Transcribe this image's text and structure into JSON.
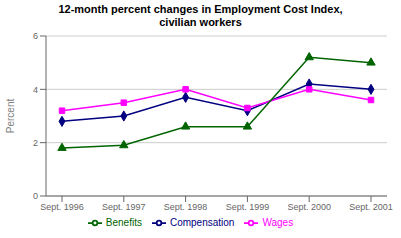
{
  "chart_data": {
    "type": "line",
    "title": "12-month percent changes in Employment Cost Index,\ncivilian workers",
    "ylabel": "Percent",
    "categories": [
      "Sept. 1996",
      "Sept. 1997",
      "Sept. 1998",
      "Sept. 1999",
      "Sept. 2000",
      "Sept. 2001"
    ],
    "series": [
      {
        "name": "Compensation",
        "color": "#000080",
        "marker": "diamond",
        "line_style": "solid",
        "values": [
          2.8,
          3.0,
          3.7,
          3.2,
          4.2,
          4.0
        ]
      },
      {
        "name": "Wages",
        "color": "#FF00FF",
        "marker": "square",
        "line_style": "solid",
        "values": [
          3.2,
          3.5,
          4.0,
          3.3,
          4.0,
          3.6
        ]
      },
      {
        "name": "Benefits",
        "color": "#006400",
        "marker": "triangle",
        "line_style": "solid",
        "values": [
          1.8,
          1.9,
          2.6,
          2.6,
          5.2,
          5.0
        ]
      }
    ],
    "ylim": [
      0,
      6
    ],
    "yticks": [
      0,
      2,
      4,
      6
    ],
    "grid": true,
    "legend": "bottom"
  }
}
